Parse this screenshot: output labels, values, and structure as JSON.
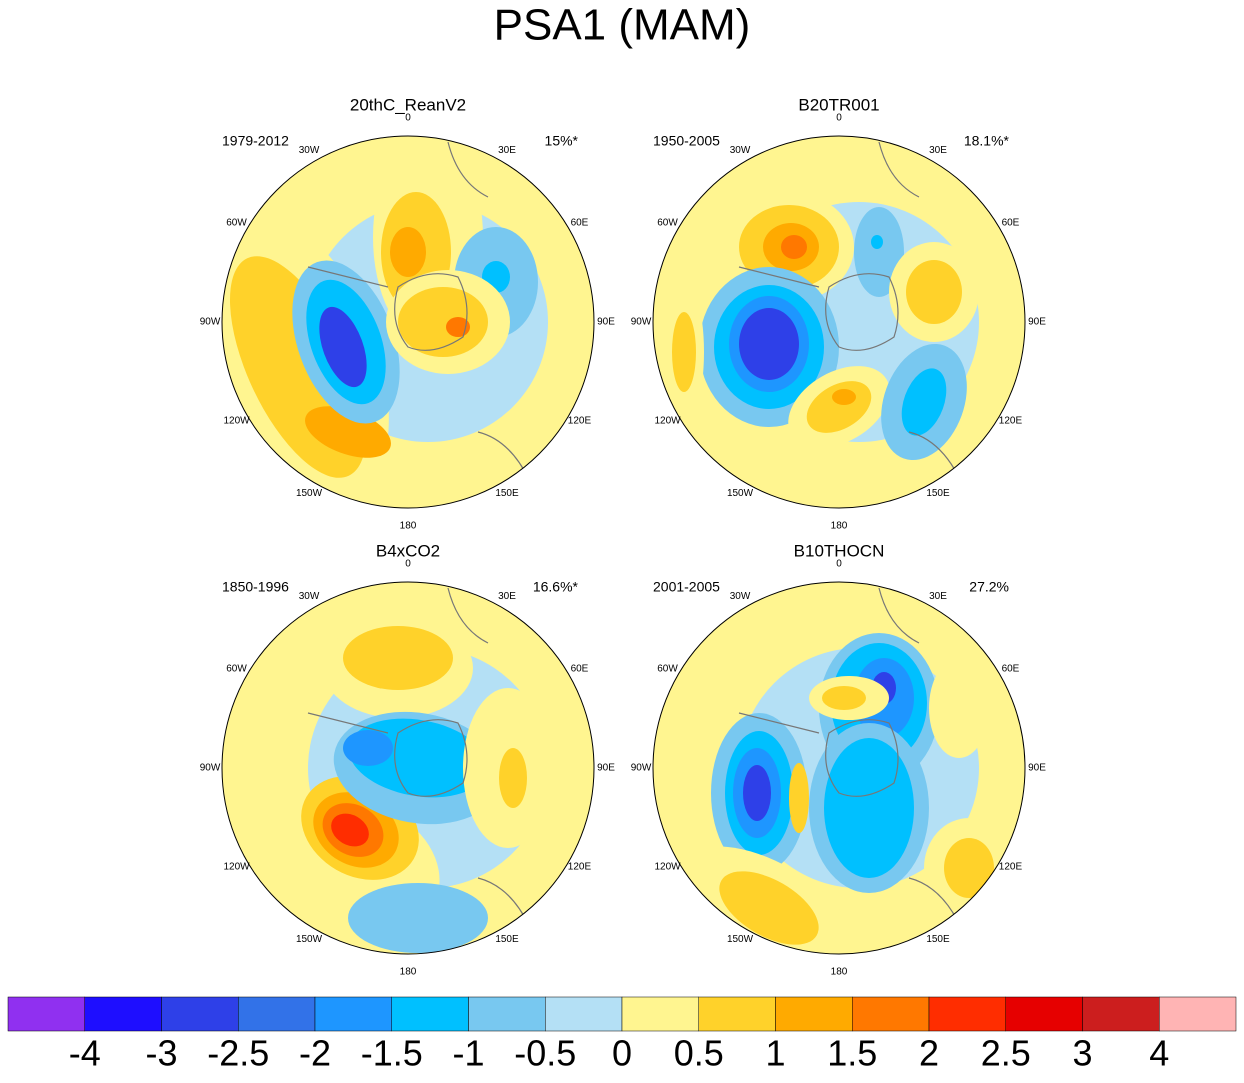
{
  "title": "PSA1 (MAM)",
  "longitude_labels": [
    "0",
    "30E",
    "60E",
    "90E",
    "120E",
    "150E",
    "180",
    "150W",
    "120W",
    "90W",
    "60W",
    "30W"
  ],
  "panels": [
    {
      "title": "20thC_ReanV2",
      "period": "1979-2012",
      "variance": "15%*"
    },
    {
      "title": "B20TR001",
      "period": "1950-2005",
      "variance": "18.1%*"
    },
    {
      "title": "B4xCO2",
      "period": "1850-1996",
      "variance": "16.6%*"
    },
    {
      "title": "B10THOCN",
      "period": "2001-2005",
      "variance": "27.2%"
    }
  ],
  "colorbar": {
    "labels": [
      "-4",
      "-3",
      "-2.5",
      "-2",
      "-1.5",
      "-1",
      "-0.5",
      "0",
      "0.5",
      "1",
      "1.5",
      "2",
      "2.5",
      "3",
      "4"
    ],
    "colors": [
      "#9030f0",
      "#1e0eff",
      "#2e40e8",
      "#3272e8",
      "#1e96ff",
      "#00c0ff",
      "#78c8f0",
      "#b4e0f5",
      "#fff590",
      "#ffd22a",
      "#ffaa00",
      "#ff7800",
      "#ff2d00",
      "#e60000",
      "#cc1e1e",
      "#ffb4b4"
    ]
  }
}
